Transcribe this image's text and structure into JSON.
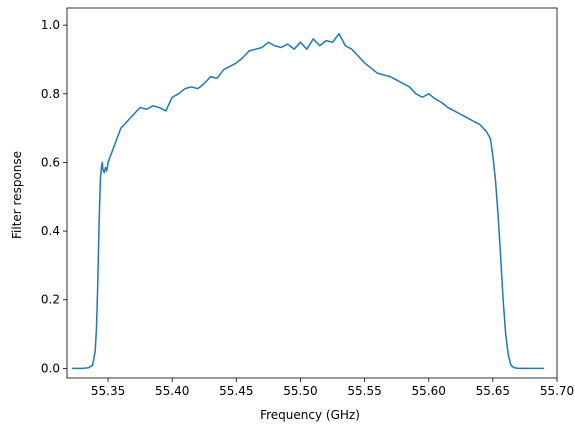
{
  "chart_data": {
    "type": "line",
    "title": "",
    "xlabel": "Frequency (GHz)",
    "ylabel": "Filter response",
    "xlim": [
      55.318,
      55.7
    ],
    "ylim": [
      -0.028,
      1.05
    ],
    "grid": false,
    "x_ticks": [
      {
        "value": 55.35,
        "label": "55.35"
      },
      {
        "value": 55.4,
        "label": "55.40"
      },
      {
        "value": 55.45,
        "label": "55.45"
      },
      {
        "value": 55.5,
        "label": "55.50"
      },
      {
        "value": 55.55,
        "label": "55.55"
      },
      {
        "value": 55.6,
        "label": "55.60"
      },
      {
        "value": 55.65,
        "label": "55.65"
      },
      {
        "value": 55.7,
        "label": "55.70"
      }
    ],
    "y_ticks": [
      {
        "value": 0.0,
        "label": "0.0"
      },
      {
        "value": 0.2,
        "label": "0.2"
      },
      {
        "value": 0.4,
        "label": "0.4"
      },
      {
        "value": 0.6,
        "label": "0.6"
      },
      {
        "value": 0.8,
        "label": "0.8"
      },
      {
        "value": 1.0,
        "label": "1.0"
      }
    ],
    "series": [
      {
        "color": "#1f77b4",
        "x": [
          55.322,
          55.33,
          55.335,
          55.338,
          55.34,
          55.341,
          55.342,
          55.343,
          55.344,
          55.345,
          55.3455,
          55.346,
          55.347,
          55.348,
          55.349,
          55.35,
          55.352,
          55.355,
          55.358,
          55.36,
          55.365,
          55.37,
          55.375,
          55.38,
          55.385,
          55.39,
          55.395,
          55.4,
          55.405,
          55.41,
          55.415,
          55.42,
          55.425,
          55.43,
          55.435,
          55.44,
          55.445,
          55.45,
          55.455,
          55.46,
          55.465,
          55.47,
          55.475,
          55.48,
          55.485,
          55.49,
          55.495,
          55.5,
          55.505,
          55.51,
          55.515,
          55.52,
          55.525,
          55.53,
          55.535,
          55.54,
          55.545,
          55.55,
          55.555,
          55.56,
          55.565,
          55.57,
          55.575,
          55.58,
          55.585,
          55.59,
          55.595,
          55.6,
          55.605,
          55.61,
          55.615,
          55.62,
          55.625,
          55.63,
          55.635,
          55.64,
          55.645,
          55.648,
          55.65,
          55.652,
          55.654,
          55.656,
          55.658,
          55.66,
          55.662,
          55.664,
          55.666,
          55.668,
          55.67,
          55.675,
          55.68,
          55.69
        ],
        "y": [
          0.0,
          0.0,
          0.002,
          0.01,
          0.05,
          0.12,
          0.25,
          0.42,
          0.55,
          0.59,
          0.6,
          0.58,
          0.57,
          0.585,
          0.575,
          0.6,
          0.62,
          0.65,
          0.68,
          0.7,
          0.72,
          0.74,
          0.76,
          0.755,
          0.765,
          0.76,
          0.75,
          0.79,
          0.8,
          0.815,
          0.82,
          0.815,
          0.83,
          0.85,
          0.845,
          0.87,
          0.88,
          0.89,
          0.905,
          0.925,
          0.93,
          0.935,
          0.95,
          0.94,
          0.935,
          0.945,
          0.93,
          0.95,
          0.93,
          0.96,
          0.94,
          0.955,
          0.95,
          0.975,
          0.94,
          0.93,
          0.91,
          0.89,
          0.875,
          0.86,
          0.855,
          0.85,
          0.84,
          0.83,
          0.82,
          0.8,
          0.79,
          0.8,
          0.785,
          0.775,
          0.76,
          0.75,
          0.74,
          0.73,
          0.72,
          0.71,
          0.69,
          0.67,
          0.62,
          0.55,
          0.45,
          0.33,
          0.2,
          0.1,
          0.04,
          0.01,
          0.003,
          0.001,
          0.0,
          0.0,
          0.0,
          0.0
        ]
      }
    ]
  }
}
